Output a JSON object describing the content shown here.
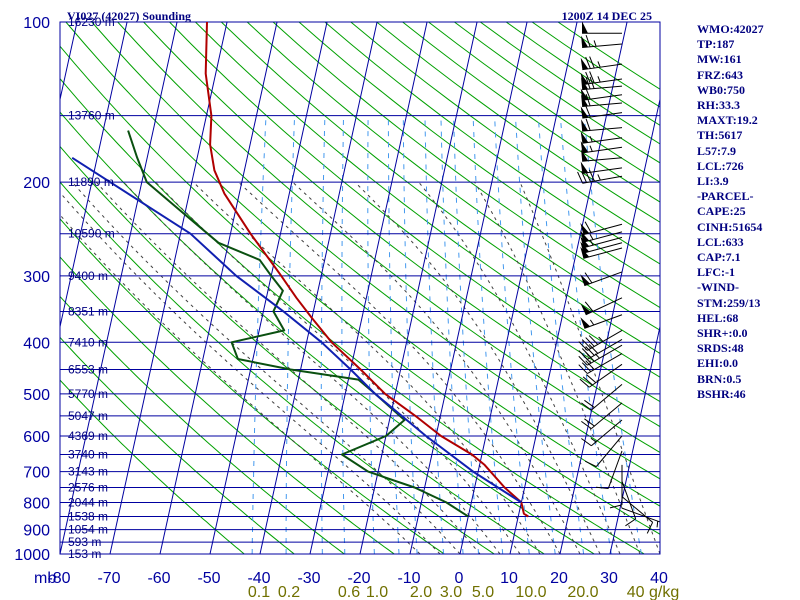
{
  "header": {
    "station": "VI027 (42027) Sounding",
    "time": "1200Z 14 DEC 25"
  },
  "colors": {
    "frame": "#0000a0",
    "text": "#000080",
    "temperature": "#b00000",
    "dewpoint": "#0a5010",
    "parcel": "#1020b0",
    "dry_adiabat": "#00a000",
    "moist_adiabat": "#404040",
    "mixing_ratio": "#4499ee",
    "mixing_label": "#707000"
  },
  "stats": [
    "WMO:42027",
    "TP:187",
    "MW:161",
    "FRZ:643",
    "WB0:750",
    "RH:33.3",
    "MAXT:19.2",
    "TH:5617",
    "L57:7.9",
    "LCL:726",
    "LI:3.9",
    "-PARCEL-",
    "CAPE:25",
    "CINH:51654",
    "LCL:633",
    "CAP:7.1",
    "LFC:-1",
    "-WIND-",
    "STM:259/13",
    "HEL:68",
    "SHR+:0.0",
    "SRDS:48",
    "EHI:0.0",
    "BRN:0.5",
    "BSHR:46"
  ],
  "chart_data": {
    "type": "line",
    "title": "VI027 (42027) Sounding",
    "subtitle": "1200Z 14 DEC 25",
    "x_unit_label": "mb",
    "y_axis": "pressure (mb), log scale",
    "pressure_ticks": [
      100,
      200,
      300,
      400,
      500,
      600,
      700,
      800,
      900,
      1000
    ],
    "temperature_ticks": [
      -80,
      -70,
      -60,
      -50,
      -40,
      -30,
      -20,
      -10,
      0,
      10,
      20,
      30,
      40
    ],
    "xlim": [
      -80,
      40
    ],
    "ylim": [
      1000,
      100
    ],
    "grid": true,
    "height_labels": [
      {
        "p": 100,
        "label": "16230 m"
      },
      {
        "p": 150,
        "label": "13760 m"
      },
      {
        "p": 200,
        "label": "11890 m"
      },
      {
        "p": 250,
        "label": "10590 m"
      },
      {
        "p": 300,
        "label": "9400 m"
      },
      {
        "p": 350,
        "label": "8351 m"
      },
      {
        "p": 400,
        "label": "7410 m"
      },
      {
        "p": 450,
        "label": "6553 m"
      },
      {
        "p": 500,
        "label": "5770 m"
      },
      {
        "p": 550,
        "label": "5047 m"
      },
      {
        "p": 600,
        "label": "4369 m"
      },
      {
        "p": 650,
        "label": "3740 m"
      },
      {
        "p": 700,
        "label": "3143 m"
      },
      {
        "p": 750,
        "label": "2576 m"
      },
      {
        "p": 800,
        "label": "2044 m"
      },
      {
        "p": 850,
        "label": "1538 m"
      },
      {
        "p": 900,
        "label": "1054 m"
      },
      {
        "p": 950,
        "label": "593 m"
      },
      {
        "p": 1000,
        "label": "153 m"
      }
    ],
    "mixing_ratio_labels": [
      "0.1",
      "0.2",
      "0.6",
      "1.0",
      "2.0",
      "3.0",
      "5.0",
      "10.0",
      "20.0",
      "40 g/kg"
    ],
    "series": [
      {
        "key": "temperature",
        "points": [
          {
            "p": 100,
            "t": -74
          },
          {
            "p": 125,
            "t": -72
          },
          {
            "p": 150,
            "t": -69
          },
          {
            "p": 170,
            "t": -68
          },
          {
            "p": 190,
            "t": -66
          },
          {
            "p": 210,
            "t": -63
          },
          {
            "p": 250,
            "t": -56
          },
          {
            "p": 280,
            "t": -51
          },
          {
            "p": 300,
            "t": -48
          },
          {
            "p": 330,
            "t": -44
          },
          {
            "p": 360,
            "t": -40
          },
          {
            "p": 400,
            "t": -35
          },
          {
            "p": 450,
            "t": -28
          },
          {
            "p": 500,
            "t": -22
          },
          {
            "p": 550,
            "t": -15
          },
          {
            "p": 600,
            "t": -9
          },
          {
            "p": 650,
            "t": -2
          },
          {
            "p": 680,
            "t": 1
          },
          {
            "p": 750,
            "t": 6
          },
          {
            "p": 800,
            "t": 10
          },
          {
            "p": 840,
            "t": 11
          },
          {
            "p": 850,
            "t": 12
          }
        ]
      },
      {
        "key": "dewpoint",
        "points": [
          {
            "p": 160,
            "t": -85
          },
          {
            "p": 180,
            "t": -82
          },
          {
            "p": 200,
            "t": -79
          },
          {
            "p": 230,
            "t": -70
          },
          {
            "p": 260,
            "t": -62
          },
          {
            "p": 280,
            "t": -53
          },
          {
            "p": 300,
            "t": -50
          },
          {
            "p": 320,
            "t": -47
          },
          {
            "p": 350,
            "t": -48
          },
          {
            "p": 380,
            "t": -45
          },
          {
            "p": 400,
            "t": -55
          },
          {
            "p": 430,
            "t": -53
          },
          {
            "p": 450,
            "t": -42
          },
          {
            "p": 470,
            "t": -28
          },
          {
            "p": 500,
            "t": -24
          },
          {
            "p": 560,
            "t": -17
          },
          {
            "p": 600,
            "t": -20
          },
          {
            "p": 650,
            "t": -28
          },
          {
            "p": 700,
            "t": -22
          },
          {
            "p": 750,
            "t": -12
          },
          {
            "p": 800,
            "t": -5
          },
          {
            "p": 840,
            "t": -1
          },
          {
            "p": 850,
            "t": 0
          }
        ]
      },
      {
        "key": "parcel",
        "points": [
          {
            "p": 180,
            "t": -95
          },
          {
            "p": 250,
            "t": -68
          },
          {
            "p": 300,
            "t": -57
          },
          {
            "p": 350,
            "t": -46
          },
          {
            "p": 400,
            "t": -37
          },
          {
            "p": 450,
            "t": -30
          },
          {
            "p": 500,
            "t": -24
          },
          {
            "p": 600,
            "t": -12
          },
          {
            "p": 700,
            "t": -1
          },
          {
            "p": 800,
            "t": 10
          }
        ]
      }
    ],
    "wind_barbs": [
      {
        "p": 105,
        "dir": 270,
        "spd": 50
      },
      {
        "p": 110,
        "dir": 265,
        "spd": 65
      },
      {
        "p": 120,
        "dir": 262,
        "spd": 75
      },
      {
        "p": 128,
        "dir": 262,
        "spd": 75
      },
      {
        "p": 132,
        "dir": 265,
        "spd": 70
      },
      {
        "p": 137,
        "dir": 262,
        "spd": 60
      },
      {
        "p": 142,
        "dir": 265,
        "spd": 60
      },
      {
        "p": 148,
        "dir": 262,
        "spd": 60
      },
      {
        "p": 158,
        "dir": 265,
        "spd": 60
      },
      {
        "p": 165,
        "dir": 262,
        "spd": 55
      },
      {
        "p": 172,
        "dir": 262,
        "spd": 55
      },
      {
        "p": 180,
        "dir": 265,
        "spd": 50
      },
      {
        "p": 188,
        "dir": 262,
        "spd": 50
      },
      {
        "p": 195,
        "dir": 260,
        "spd": 45
      },
      {
        "p": 240,
        "dir": 255,
        "spd": 60
      },
      {
        "p": 248,
        "dir": 255,
        "spd": 55
      },
      {
        "p": 254,
        "dir": 255,
        "spd": 55
      },
      {
        "p": 260,
        "dir": 255,
        "spd": 50
      },
      {
        "p": 266,
        "dir": 255,
        "spd": 50
      },
      {
        "p": 295,
        "dir": 250,
        "spd": 60
      },
      {
        "p": 330,
        "dir": 245,
        "spd": 60
      },
      {
        "p": 355,
        "dir": 250,
        "spd": 55
      },
      {
        "p": 380,
        "dir": 240,
        "spd": 45
      },
      {
        "p": 395,
        "dir": 240,
        "spd": 40
      },
      {
        "p": 405,
        "dir": 240,
        "spd": 35
      },
      {
        "p": 420,
        "dir": 240,
        "spd": 30
      },
      {
        "p": 440,
        "dir": 235,
        "spd": 30
      },
      {
        "p": 480,
        "dir": 230,
        "spd": 20
      },
      {
        "p": 520,
        "dir": 230,
        "spd": 20
      },
      {
        "p": 560,
        "dir": 230,
        "spd": 15
      },
      {
        "p": 600,
        "dir": 220,
        "spd": 10
      },
      {
        "p": 640,
        "dir": 200,
        "spd": 10
      },
      {
        "p": 680,
        "dir": 180,
        "spd": 10
      },
      {
        "p": 730,
        "dir": 160,
        "spd": 10
      },
      {
        "p": 780,
        "dir": 130,
        "spd": 10
      },
      {
        "p": 820,
        "dir": 110,
        "spd": 5
      }
    ]
  }
}
